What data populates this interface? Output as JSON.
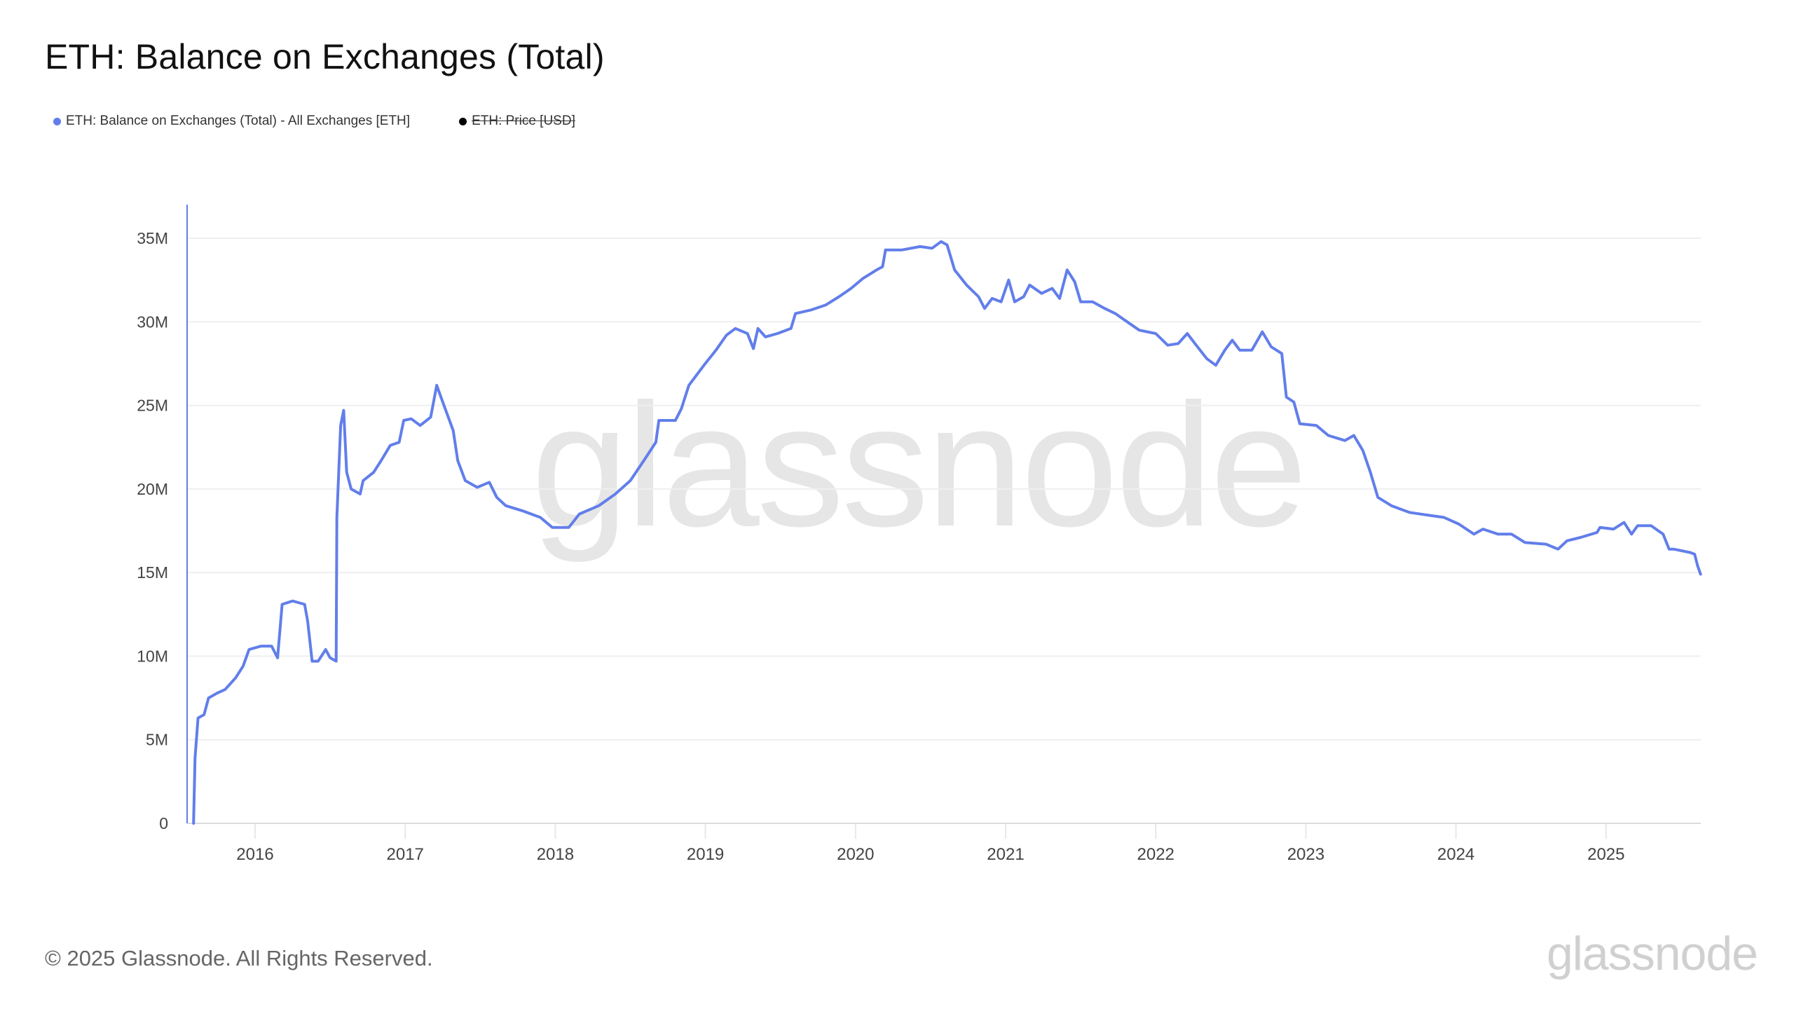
{
  "title": "ETH: Balance on Exchanges (Total)",
  "legend": [
    {
      "label": "ETH: Balance on Exchanges (Total) - All Exchanges [ETH]",
      "color": "#627EEA",
      "enabled": true
    },
    {
      "label": "ETH: Price [USD]",
      "color": "#000000",
      "enabled": false
    }
  ],
  "watermark": "glassnode",
  "footer": {
    "copyright": "© 2025 Glassnode. All Rights Reserved.",
    "logo": "glassnode"
  },
  "colors": {
    "line": "#627EEA",
    "axis_left": "#627EEA",
    "grid": "#efefef",
    "tick_text": "#444444"
  },
  "chart_data": {
    "type": "line",
    "title": "ETH: Balance on Exchanges (Total)",
    "xlabel": "",
    "ylabel": "",
    "ylim": [
      0,
      35000000
    ],
    "xlim": [
      2015.55,
      2025.65
    ],
    "grid": true,
    "legend_position": "top-left",
    "y_ticks": [
      {
        "value": 0,
        "label": "0"
      },
      {
        "value": 5000000,
        "label": "5M"
      },
      {
        "value": 10000000,
        "label": "10M"
      },
      {
        "value": 15000000,
        "label": "15M"
      },
      {
        "value": 20000000,
        "label": "20M"
      },
      {
        "value": 25000000,
        "label": "25M"
      },
      {
        "value": 30000000,
        "label": "30M"
      },
      {
        "value": 35000000,
        "label": "35M"
      }
    ],
    "x_ticks": [
      {
        "value": 2016,
        "label": "2016"
      },
      {
        "value": 2017,
        "label": "2017"
      },
      {
        "value": 2018,
        "label": "2018"
      },
      {
        "value": 2019,
        "label": "2019"
      },
      {
        "value": 2020,
        "label": "2020"
      },
      {
        "value": 2021,
        "label": "2021"
      },
      {
        "value": 2022,
        "label": "2022"
      },
      {
        "value": 2023,
        "label": "2023"
      },
      {
        "value": 2024,
        "label": "2024"
      },
      {
        "value": 2025,
        "label": "2025"
      }
    ],
    "series": [
      {
        "name": "ETH: Balance on Exchanges (Total) - All Exchanges [ETH]",
        "color": "#627EEA",
        "x": [
          2015.59,
          2015.6,
          2015.62,
          2015.66,
          2015.69,
          2015.75,
          2015.8,
          2015.87,
          2015.92,
          2015.96,
          2016.04,
          2016.11,
          2016.15,
          2016.18,
          2016.25,
          2016.33,
          2016.35,
          2016.38,
          2016.42,
          2016.47,
          2016.5,
          2016.54,
          2016.545,
          2016.57,
          2016.59,
          2016.61,
          2016.64,
          2016.7,
          2016.72,
          2016.79,
          2016.84,
          2016.9,
          2016.96,
          2016.99,
          2017.04,
          2017.1,
          2017.17,
          2017.21,
          2017.25,
          2017.32,
          2017.35,
          2017.4,
          2017.48,
          2017.56,
          2017.61,
          2017.67,
          2017.78,
          2017.9,
          2017.98,
          2018.09,
          2018.16,
          2018.29,
          2018.4,
          2018.5,
          2018.59,
          2018.67,
          2018.69,
          2018.8,
          2018.84,
          2018.89,
          2018.99,
          2019.07,
          2019.14,
          2019.2,
          2019.28,
          2019.32,
          2019.35,
          2019.4,
          2019.48,
          2019.57,
          2019.6,
          2019.7,
          2019.8,
          2019.89,
          2019.97,
          2020.05,
          2020.14,
          2020.18,
          2020.2,
          2020.31,
          2020.43,
          2020.51,
          2020.57,
          2020.61,
          2020.66,
          2020.74,
          2020.82,
          2020.86,
          2020.91,
          2020.97,
          2021.02,
          2021.06,
          2021.12,
          2021.16,
          2021.24,
          2021.31,
          2021.36,
          2021.41,
          2021.46,
          2021.5,
          2021.58,
          2021.66,
          2021.73,
          2021.81,
          2021.89,
          2022.0,
          2022.08,
          2022.15,
          2022.21,
          2022.27,
          2022.34,
          2022.4,
          2022.46,
          2022.51,
          2022.56,
          2022.64,
          2022.71,
          2022.77,
          2022.84,
          2022.87,
          2022.92,
          2022.96,
          2023.07,
          2023.15,
          2023.26,
          2023.32,
          2023.38,
          2023.43,
          2023.48,
          2023.57,
          2023.69,
          2023.84,
          2023.92,
          2024.02,
          2024.12,
          2024.18,
          2024.28,
          2024.37,
          2024.46,
          2024.6,
          2024.68,
          2024.74,
          2024.83,
          2024.94,
          2024.96,
          2025.05,
          2025.12,
          2025.17,
          2025.21,
          2025.3,
          2025.38,
          2025.42,
          2025.45,
          2025.56,
          2025.59,
          2025.61,
          2025.63
        ],
        "values": [
          0,
          3900000,
          6300000,
          6500000,
          7500000,
          7800000,
          8000000,
          8700000,
          9400000,
          10400000,
          10600000,
          10600000,
          9900000,
          13100000,
          13300000,
          13100000,
          12100000,
          9700000,
          9700000,
          10400000,
          9900000,
          9700000,
          18300000,
          23800000,
          24700000,
          21000000,
          20000000,
          19700000,
          20500000,
          21000000,
          21700000,
          22600000,
          22800000,
          24100000,
          24200000,
          23800000,
          24300000,
          26200000,
          25200000,
          23500000,
          21700000,
          20500000,
          20100000,
          20400000,
          19500000,
          19000000,
          18700000,
          18300000,
          17700000,
          17700000,
          18500000,
          19000000,
          19700000,
          20500000,
          21700000,
          22800000,
          24100000,
          24100000,
          24800000,
          26200000,
          27400000,
          28300000,
          29200000,
          29600000,
          29300000,
          28400000,
          29600000,
          29100000,
          29300000,
          29600000,
          30500000,
          30700000,
          31000000,
          31500000,
          32000000,
          32600000,
          33100000,
          33300000,
          34300000,
          34300000,
          34500000,
          34400000,
          34800000,
          34600000,
          33100000,
          32200000,
          31500000,
          30800000,
          31400000,
          31200000,
          32500000,
          31200000,
          31500000,
          32200000,
          31700000,
          32000000,
          31400000,
          33100000,
          32400000,
          31200000,
          31200000,
          30800000,
          30500000,
          30000000,
          29500000,
          29300000,
          28600000,
          28700000,
          29300000,
          28600000,
          27800000,
          27400000,
          28300000,
          28900000,
          28300000,
          28300000,
          29400000,
          28500000,
          28100000,
          25500000,
          25200000,
          23900000,
          23800000,
          23200000,
          22900000,
          23200000,
          22300000,
          21000000,
          19500000,
          19000000,
          18600000,
          18400000,
          18300000,
          17900000,
          17300000,
          17600000,
          17300000,
          17300000,
          16800000,
          16700000,
          16400000,
          16900000,
          17100000,
          17400000,
          17700000,
          17600000,
          18000000,
          17300000,
          17800000,
          17800000,
          17300000,
          16400000,
          16400000,
          16200000,
          16100000,
          15400000,
          14900000
        ]
      }
    ]
  }
}
